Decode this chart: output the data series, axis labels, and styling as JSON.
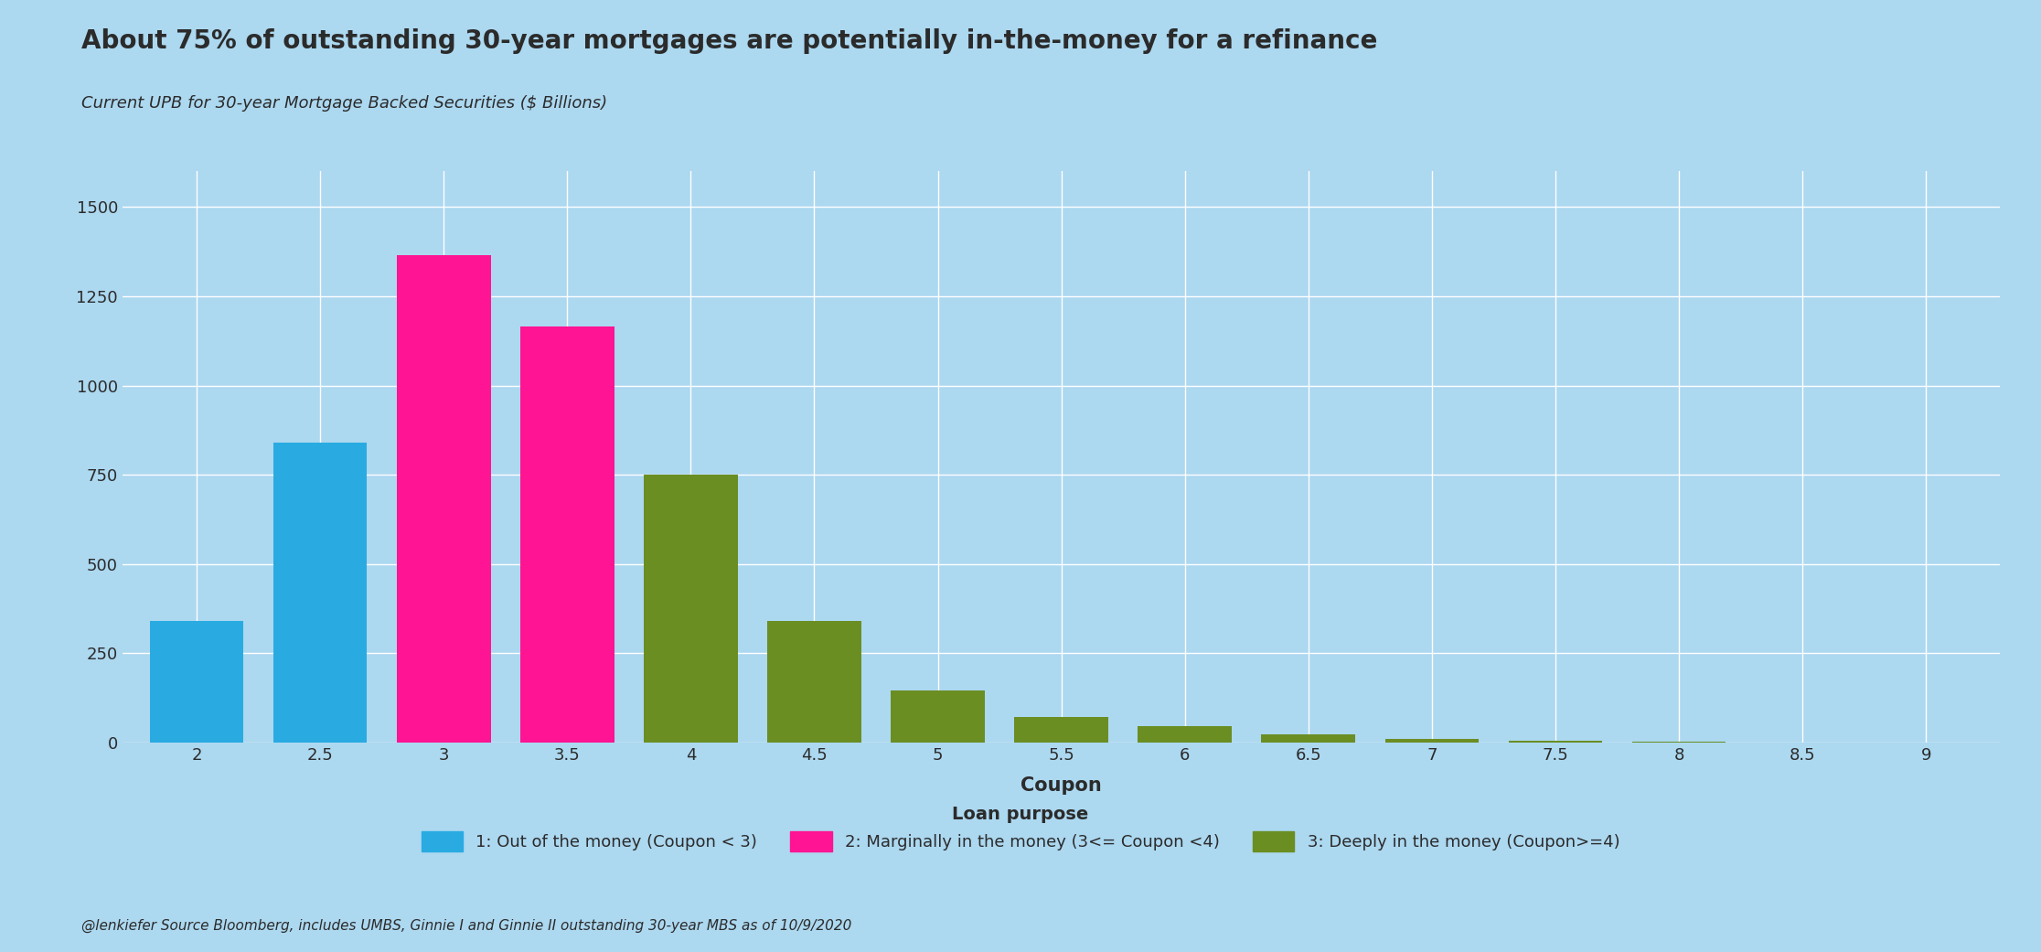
{
  "title": "About 75% of outstanding 30-year mortgages are potentially in-the-money for a refinance",
  "subtitle": "Current UPB for 30-year Mortgage Backed Securities ($ Billions)",
  "xlabel": "Coupon",
  "footnote": "@lenkiefer Source Bloomberg, includes UMBS, Ginnie I and Ginnie II outstanding 30-year MBS as of 10/9/2020",
  "background_color": "#ACD8F0",
  "bar_data": [
    {
      "coupon": 2.0,
      "value": 340,
      "group": 1
    },
    {
      "coupon": 2.5,
      "value": 840,
      "group": 1
    },
    {
      "coupon": 3.0,
      "value": 1365,
      "group": 2
    },
    {
      "coupon": 3.5,
      "value": 1165,
      "group": 2
    },
    {
      "coupon": 4.0,
      "value": 750,
      "group": 3
    },
    {
      "coupon": 4.5,
      "value": 340,
      "group": 3
    },
    {
      "coupon": 5.0,
      "value": 145,
      "group": 3
    },
    {
      "coupon": 5.5,
      "value": 72,
      "group": 3
    },
    {
      "coupon": 6.0,
      "value": 45,
      "group": 3
    },
    {
      "coupon": 6.5,
      "value": 22,
      "group": 3
    },
    {
      "coupon": 7.0,
      "value": 10,
      "group": 3
    },
    {
      "coupon": 7.5,
      "value": 4,
      "group": 3
    },
    {
      "coupon": 8.0,
      "value": 2,
      "group": 3
    },
    {
      "coupon": 8.5,
      "value": 1,
      "group": 3
    },
    {
      "coupon": 9.0,
      "value": 0.5,
      "group": 3
    }
  ],
  "group_colors": {
    "1": "#29ABE2",
    "2": "#FF1493",
    "3": "#6B8E23"
  },
  "legend_labels": {
    "1": "1: Out of the money (Coupon < 3)",
    "2": "2: Marginally in the money (3<= Coupon <4)",
    "3": "3: Deeply in the money (Coupon>=4)"
  },
  "legend_title": "Loan purpose",
  "ylim": [
    0,
    1600
  ],
  "yticks": [
    0,
    250,
    500,
    750,
    1000,
    1250,
    1500
  ],
  "xticks": [
    2.0,
    2.5,
    3.0,
    3.5,
    4.0,
    4.5,
    5.0,
    5.5,
    6.0,
    6.5,
    7.0,
    7.5,
    8.0,
    8.5,
    9.0
  ],
  "bar_width": 0.38,
  "title_fontsize": 20,
  "subtitle_fontsize": 13,
  "axis_fontsize": 15,
  "tick_fontsize": 13,
  "legend_fontsize": 13,
  "footnote_fontsize": 11,
  "grid_color": "#FFFFFF",
  "text_color": "#2B2B2B"
}
